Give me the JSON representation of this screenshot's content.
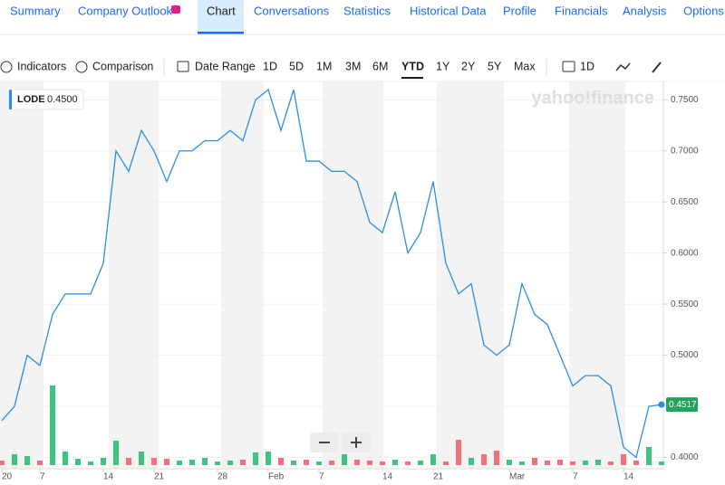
{
  "tabs": [
    "Summary",
    "Company Outlook",
    "Chart",
    "Conversations",
    "Statistics",
    "Historical Data",
    "Profile",
    "Financials",
    "Analysis",
    "Options"
  ],
  "toolbar": {
    "indicators": "Indicators",
    "comparison": "Comparison",
    "date_range": "Date Range",
    "ranges": [
      "1D",
      "5D",
      "1M",
      "3M",
      "6M",
      "YTD",
      "1Y",
      "2Y",
      "5Y",
      "Max"
    ],
    "interval": "1D"
  },
  "watermark": "yahoo!finance",
  "chart_data": {
    "type": "line",
    "categories": [
      "20",
      null,
      null,
      "7",
      null,
      null,
      null,
      null,
      "14",
      null,
      null,
      null,
      "21",
      null,
      null,
      null,
      null,
      "28",
      null,
      null,
      null,
      "Feb",
      null,
      null,
      null,
      "7",
      null,
      null,
      null,
      null,
      "14",
      null,
      null,
      null,
      "21",
      null,
      null,
      null,
      null,
      null,
      "Mar",
      null,
      null,
      null,
      null,
      "7",
      null,
      null,
      null,
      "14",
      null,
      null,
      null
    ],
    "series": [
      {
        "name": "LODE",
        "color": "#2a8fe0",
        "values": [
          0.436,
          0.45,
          0.5,
          0.49,
          0.54,
          0.56,
          0.56,
          0.56,
          0.59,
          0.7,
          0.68,
          0.72,
          0.7,
          0.67,
          0.7,
          0.7,
          0.71,
          0.71,
          0.72,
          0.71,
          0.75,
          0.76,
          0.72,
          0.76,
          0.69,
          0.69,
          0.68,
          0.68,
          0.67,
          0.63,
          0.62,
          0.66,
          0.6,
          0.62,
          0.67,
          0.59,
          0.56,
          0.57,
          0.51,
          0.5,
          0.51,
          0.57,
          0.54,
          0.53,
          0.5,
          0.47,
          0.48,
          0.48,
          0.47,
          0.41,
          0.4,
          0.45,
          0.4517
        ]
      }
    ],
    "legend_value": "0.4500",
    "last_value_label": "0.4517",
    "volume": [
      5,
      12,
      10,
      5,
      88,
      15,
      7,
      4,
      8,
      27,
      8,
      15,
      8,
      7,
      5,
      6,
      8,
      4,
      5,
      6,
      14,
      15,
      8,
      5,
      6,
      4,
      5,
      12,
      6,
      5,
      4,
      6,
      4,
      5,
      12,
      4,
      28,
      8,
      12,
      16,
      6,
      4,
      8,
      5,
      6,
      4,
      5,
      6,
      4,
      12,
      5,
      20,
      4
    ],
    "volume_colors": {
      "up": "#3ec47e",
      "down": "#f1707a"
    },
    "ylim": [
      0.396,
      0.768
    ],
    "yticks": [
      {
        "value": 0.4,
        "label": "0.4000"
      },
      {
        "value": 0.45,
        "label": "0.4500"
      },
      {
        "value": 0.5,
        "label": "0.5000"
      },
      {
        "value": 0.55,
        "label": "0.5500"
      },
      {
        "value": 0.6,
        "label": "0.6000"
      },
      {
        "value": 0.65,
        "label": "0.6500"
      },
      {
        "value": 0.7,
        "label": "0.7000"
      },
      {
        "value": 0.75,
        "label": "0.7500"
      }
    ],
    "grid": true
  }
}
